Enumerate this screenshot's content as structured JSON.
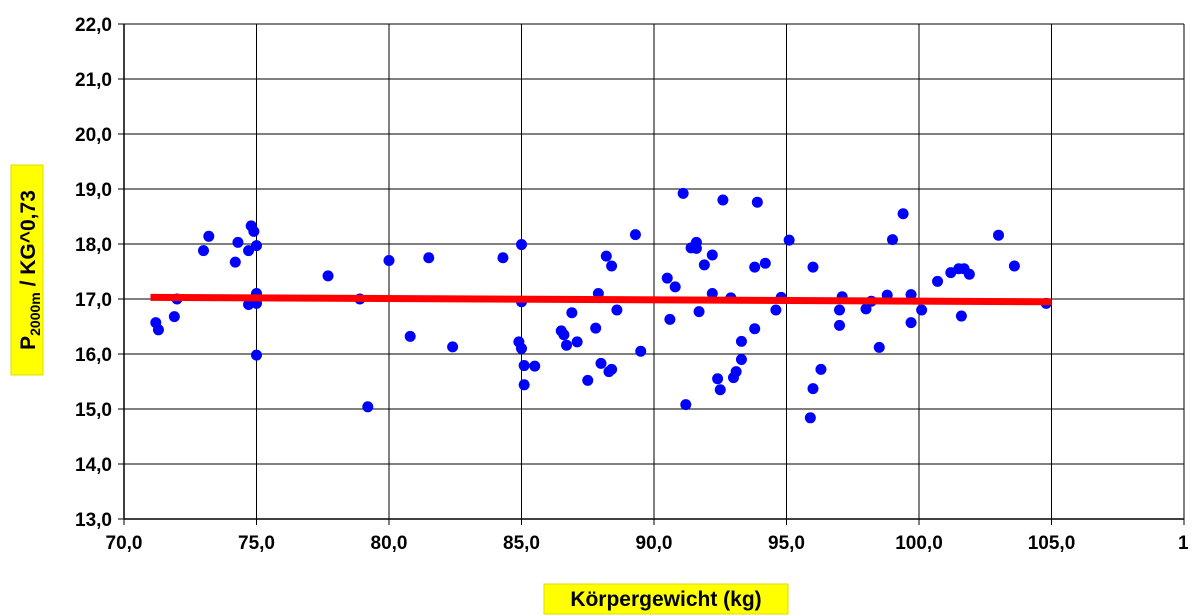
{
  "chart_data": {
    "type": "scatter",
    "xlabel": "Körpergewicht (kg)",
    "ylabel_main": "P",
    "ylabel_subscript": "2000m",
    "ylabel_rest": " / KG^0,73",
    "xlim": [
      70,
      110
    ],
    "ylim": [
      13,
      22
    ],
    "x_ticks": [
      "70,0",
      "75,0",
      "80,0",
      "85,0",
      "90,0",
      "95,0",
      "100,0",
      "105,0",
      "1"
    ],
    "y_ticks": [
      "13,0",
      "14,0",
      "15,0",
      "16,0",
      "17,0",
      "18,0",
      "19,0",
      "20,0",
      "21,0",
      "22,0"
    ],
    "grid": true,
    "colors": {
      "points": "#0000ff",
      "trendline": "#ff0000",
      "label_box": "#ffff00"
    },
    "series": [
      {
        "points": [
          [
            71.2,
            16.57
          ],
          [
            71.3,
            16.44
          ],
          [
            71.9,
            16.68
          ],
          [
            72.0,
            17.0
          ],
          [
            73.0,
            17.88
          ],
          [
            73.2,
            18.14
          ],
          [
            74.2,
            17.67
          ],
          [
            74.3,
            18.03
          ],
          [
            74.7,
            17.88
          ],
          [
            74.7,
            16.9
          ],
          [
            74.8,
            18.33
          ],
          [
            74.9,
            18.23
          ],
          [
            75.0,
            17.97
          ],
          [
            75.0,
            17.1
          ],
          [
            75.0,
            16.92
          ],
          [
            75.0,
            15.98
          ],
          [
            77.7,
            17.42
          ],
          [
            78.9,
            17.0
          ],
          [
            79.2,
            15.04
          ],
          [
            80.0,
            17.7
          ],
          [
            80.8,
            16.32
          ],
          [
            81.5,
            17.75
          ],
          [
            82.4,
            16.13
          ],
          [
            84.3,
            17.75
          ],
          [
            84.9,
            16.22
          ],
          [
            85.0,
            16.1
          ],
          [
            85.0,
            16.95
          ],
          [
            85.0,
            17.99
          ],
          [
            85.1,
            15.79
          ],
          [
            85.1,
            15.44
          ],
          [
            85.5,
            15.78
          ],
          [
            86.5,
            16.42
          ],
          [
            86.6,
            16.35
          ],
          [
            86.7,
            16.16
          ],
          [
            86.9,
            16.75
          ],
          [
            87.1,
            16.22
          ],
          [
            87.5,
            15.52
          ],
          [
            87.8,
            16.47
          ],
          [
            87.9,
            17.1
          ],
          [
            88.0,
            15.83
          ],
          [
            88.2,
            17.78
          ],
          [
            88.3,
            15.68
          ],
          [
            88.4,
            17.6
          ],
          [
            88.4,
            15.72
          ],
          [
            88.6,
            16.8
          ],
          [
            89.3,
            18.17
          ],
          [
            89.5,
            16.05
          ],
          [
            90.5,
            17.38
          ],
          [
            90.6,
            16.63
          ],
          [
            90.8,
            17.22
          ],
          [
            91.1,
            18.92
          ],
          [
            91.2,
            15.08
          ],
          [
            91.4,
            17.93
          ],
          [
            91.6,
            18.03
          ],
          [
            91.6,
            17.92
          ],
          [
            91.7,
            16.77
          ],
          [
            91.9,
            17.62
          ],
          [
            92.2,
            17.8
          ],
          [
            92.2,
            17.1
          ],
          [
            92.4,
            15.55
          ],
          [
            92.5,
            15.35
          ],
          [
            92.6,
            18.8
          ],
          [
            92.9,
            17.02
          ],
          [
            93.0,
            15.57
          ],
          [
            93.1,
            15.68
          ],
          [
            93.3,
            16.23
          ],
          [
            93.3,
            15.9
          ],
          [
            93.8,
            17.58
          ],
          [
            93.8,
            16.46
          ],
          [
            93.9,
            18.76
          ],
          [
            94.2,
            17.65
          ],
          [
            94.6,
            16.8
          ],
          [
            94.8,
            17.03
          ],
          [
            95.1,
            18.07
          ],
          [
            95.9,
            14.84
          ],
          [
            96.0,
            17.58
          ],
          [
            96.0,
            15.37
          ],
          [
            96.3,
            15.72
          ],
          [
            97.0,
            16.8
          ],
          [
            97.0,
            16.52
          ],
          [
            97.1,
            17.04
          ],
          [
            98.0,
            16.82
          ],
          [
            98.2,
            16.96
          ],
          [
            98.5,
            16.12
          ],
          [
            98.8,
            17.07
          ],
          [
            99.0,
            18.08
          ],
          [
            99.4,
            18.55
          ],
          [
            99.7,
            17.08
          ],
          [
            99.7,
            16.57
          ],
          [
            100.1,
            16.8
          ],
          [
            100.7,
            17.32
          ],
          [
            101.2,
            17.48
          ],
          [
            101.5,
            17.55
          ],
          [
            101.6,
            16.69
          ],
          [
            101.7,
            17.55
          ],
          [
            101.9,
            17.45
          ],
          [
            103.0,
            18.16
          ],
          [
            103.6,
            17.6
          ],
          [
            104.8,
            16.92
          ]
        ]
      }
    ],
    "trendline": {
      "x": [
        71.0,
        105.0
      ],
      "y": [
        17.03,
        16.95
      ]
    }
  }
}
